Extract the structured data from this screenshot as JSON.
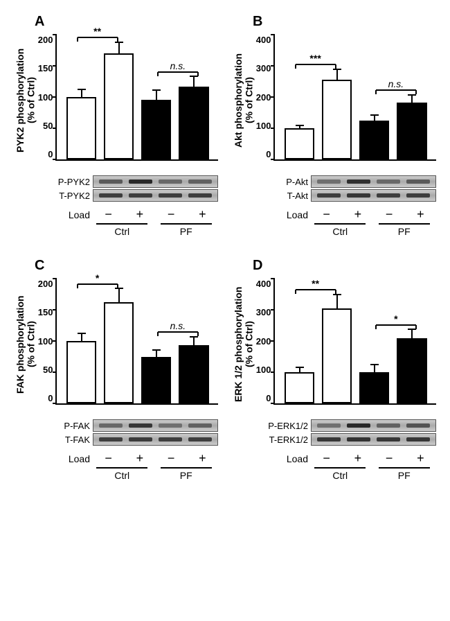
{
  "panels": [
    {
      "id": "A",
      "y_label": "PYK2 phosphorylation\n(% of Ctrl)",
      "ymax": 200,
      "ytick_step": 50,
      "bars": [
        {
          "value": 100,
          "error": 12,
          "color": "#ffffff"
        },
        {
          "value": 170,
          "error": 18,
          "color": "#ffffff"
        },
        {
          "value": 96,
          "error": 15,
          "color": "#000000"
        },
        {
          "value": 117,
          "error": 16,
          "color": "#000000"
        }
      ],
      "sig": [
        {
          "from": 0,
          "to": 1,
          "label": "**",
          "italic": false
        },
        {
          "from": 2,
          "to": 3,
          "label": "n.s.",
          "italic": true
        }
      ],
      "blot_labels": [
        "P-PYK2",
        "T-PYK2"
      ],
      "blot_intensities": [
        [
          0.5,
          0.85,
          0.4,
          0.45
        ],
        [
          0.7,
          0.7,
          0.7,
          0.7
        ]
      ],
      "load": [
        "−",
        "+",
        "−",
        "+"
      ],
      "groups": [
        "Ctrl",
        "PF"
      ]
    },
    {
      "id": "B",
      "y_label": "Akt phosphorylation\n(% of Ctrl)",
      "ymax": 400,
      "ytick_step": 100,
      "bars": [
        {
          "value": 100,
          "error": 10,
          "color": "#ffffff"
        },
        {
          "value": 255,
          "error": 35,
          "color": "#ffffff"
        },
        {
          "value": 125,
          "error": 18,
          "color": "#000000"
        },
        {
          "value": 182,
          "error": 25,
          "color": "#000000"
        }
      ],
      "sig": [
        {
          "from": 0,
          "to": 1,
          "label": "***",
          "italic": false
        },
        {
          "from": 2,
          "to": 3,
          "label": "n.s.",
          "italic": true
        }
      ],
      "blot_labels": [
        "P-Akt",
        "T-Akt"
      ],
      "blot_intensities": [
        [
          0.35,
          0.8,
          0.4,
          0.5
        ],
        [
          0.7,
          0.75,
          0.7,
          0.7
        ]
      ],
      "load": [
        "−",
        "+",
        "−",
        "+"
      ],
      "groups": [
        "Ctrl",
        "PF"
      ]
    },
    {
      "id": "C",
      "y_label": "FAK phosphorylation\n(% of Ctrl)",
      "ymax": 200,
      "ytick_step": 50,
      "bars": [
        {
          "value": 100,
          "error": 12,
          "color": "#ffffff"
        },
        {
          "value": 162,
          "error": 22,
          "color": "#ffffff"
        },
        {
          "value": 74,
          "error": 12,
          "color": "#000000"
        },
        {
          "value": 93,
          "error": 14,
          "color": "#000000"
        }
      ],
      "sig": [
        {
          "from": 0,
          "to": 1,
          "label": "*",
          "italic": false
        },
        {
          "from": 2,
          "to": 3,
          "label": "n.s.",
          "italic": true
        }
      ],
      "blot_labels": [
        "P-FAK",
        "T-FAK"
      ],
      "blot_intensities": [
        [
          0.4,
          0.75,
          0.35,
          0.45
        ],
        [
          0.7,
          0.72,
          0.7,
          0.7
        ]
      ],
      "load": [
        "−",
        "+",
        "−",
        "+"
      ],
      "groups": [
        "Ctrl",
        "PF"
      ]
    },
    {
      "id": "D",
      "y_label": "ERK 1/2 phosphorylation\n(% of Ctrl)",
      "ymax": 400,
      "ytick_step": 100,
      "bars": [
        {
          "value": 100,
          "error": 15,
          "color": "#ffffff"
        },
        {
          "value": 305,
          "error": 45,
          "color": "#ffffff"
        },
        {
          "value": 100,
          "error": 25,
          "color": "#000000"
        },
        {
          "value": 210,
          "error": 27,
          "color": "#000000"
        }
      ],
      "sig": [
        {
          "from": 0,
          "to": 1,
          "label": "**",
          "italic": false
        },
        {
          "from": 2,
          "to": 3,
          "label": "*",
          "italic": false
        }
      ],
      "blot_labels": [
        "P-ERK1/2",
        "T-ERK1/2"
      ],
      "blot_intensities": [
        [
          0.35,
          0.85,
          0.45,
          0.55
        ],
        [
          0.75,
          0.78,
          0.75,
          0.75
        ]
      ],
      "load": [
        "−",
        "+",
        "−",
        "+"
      ],
      "groups": [
        "Ctrl",
        "PF"
      ]
    }
  ],
  "style": {
    "background": "#ffffff",
    "axis_color": "#000000",
    "bar_border": "#000000",
    "font_family": "Arial",
    "label_fontsize": 14,
    "tick_fontsize": 13,
    "panel_label_fontsize": 20
  }
}
